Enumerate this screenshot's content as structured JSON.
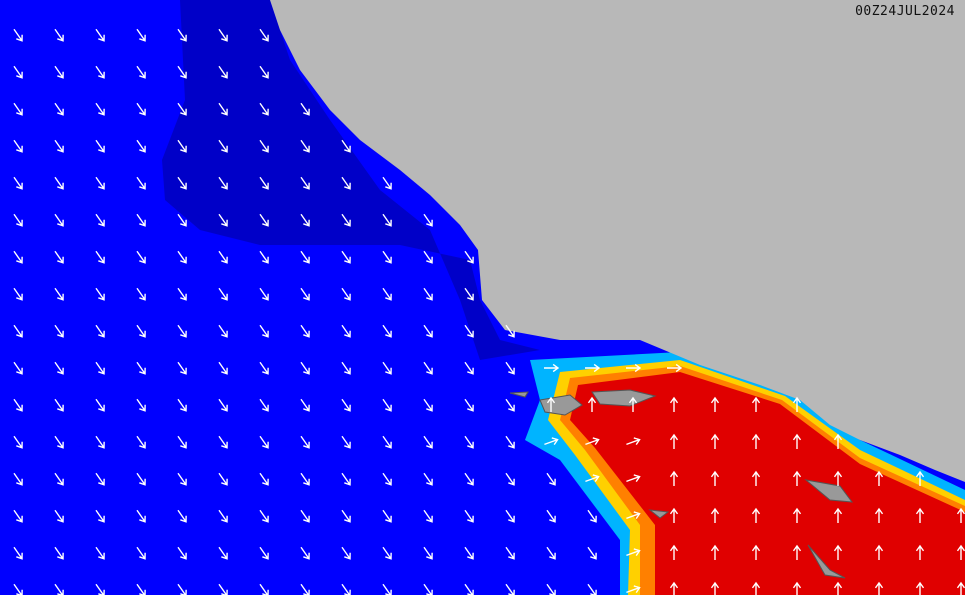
{
  "timestamp": "00Z24JUL2024",
  "colors": {
    "ocean_low": "#0000ff",
    "ocean_nearshore": "#0000cc",
    "coast_band": "#00b4ff",
    "yellow": "#ffd000",
    "orange": "#ff8000",
    "high": "#e00000",
    "land": "#b8b8b8",
    "arrow": "#ffffff"
  },
  "legend": null
}
